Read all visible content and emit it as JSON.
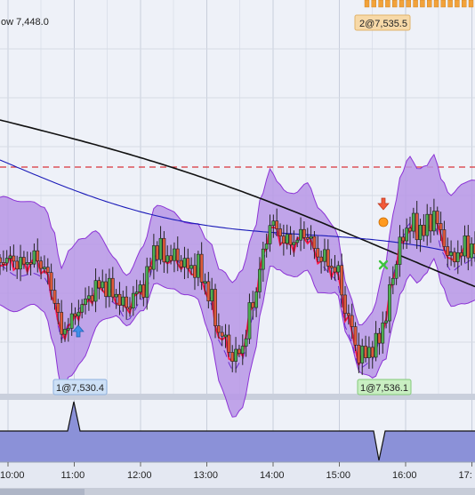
{
  "chart_data": {
    "type": "candlestick",
    "header_low_label": "ow 7,448.0",
    "high_badge": "2@7,535.5",
    "low_badges": [
      "1@7,530.4",
      "1@7,536.1"
    ],
    "x_ticks": [
      "10:00",
      "11:00",
      "12:00",
      "13:00",
      "14:00",
      "15:00",
      "16:00",
      "17:"
    ],
    "colors": {
      "panel_bg": "#eef1f8",
      "band_fill": "#b796e6",
      "band_edge": "#8c33d6",
      "candle_up": "#4caf50",
      "candle_down": "#e05a3a",
      "ma_fast": "#ff1a4a",
      "ma_mid": "#1a1ab8",
      "ma_slow": "#111111",
      "dashed_ref": "#d9343a",
      "lower_panel": "#8b91d8"
    }
  }
}
